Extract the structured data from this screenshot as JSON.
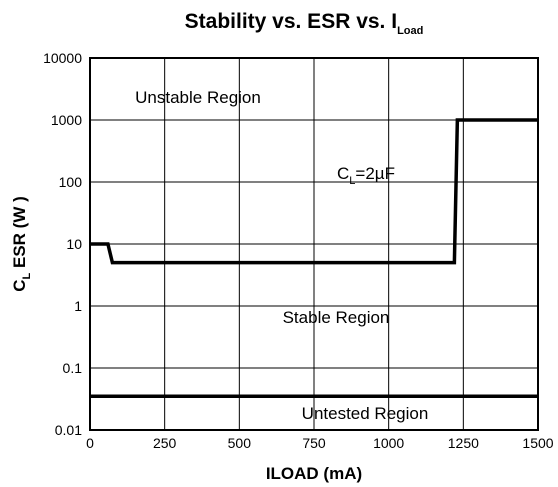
{
  "chart_data": {
    "type": "line",
    "title": "Stability vs. ESR vs. I",
    "title_subscript": "Load",
    "xlabel": "ILOAD (mA)",
    "ylabel_main": "C",
    "ylabel_sub": "L",
    "ylabel_rest": " ESR (W )",
    "xlim": [
      0,
      1500
    ],
    "ylim": [
      0.01,
      10000
    ],
    "yscale": "log",
    "x_ticks": [
      0,
      250,
      500,
      750,
      1000,
      1250,
      1500
    ],
    "x_tick_labels": [
      "0",
      "250",
      "500",
      "750",
      "1000",
      "1250",
      "1500"
    ],
    "y_ticks": [
      0.01,
      0.1,
      1,
      10,
      100,
      1000,
      10000
    ],
    "y_tick_labels": [
      "0.01",
      "0.1",
      "1",
      "10",
      "100",
      "1000",
      "10000"
    ],
    "grid": true,
    "series": [
      {
        "x": [
          0,
          60,
          75,
          1220,
          1230,
          1500
        ],
        "y": [
          10,
          10,
          5,
          5,
          1000,
          1000
        ]
      },
      {
        "x": [
          0,
          1500
        ],
        "y": [
          0.035,
          0.035
        ]
      }
    ],
    "annotations": [
      {
        "text": "Unstable Region",
        "x": 330,
        "y": 4000
      },
      {
        "text_main": "C",
        "text_sub": "L",
        "text_rest": "=2µF",
        "x": 1220,
        "y": 70
      },
      {
        "text": "Stable Region",
        "x": 820,
        "y": 0.7
      },
      {
        "text": "Untested Region",
        "x": 1210,
        "y": 0.021
      }
    ]
  }
}
